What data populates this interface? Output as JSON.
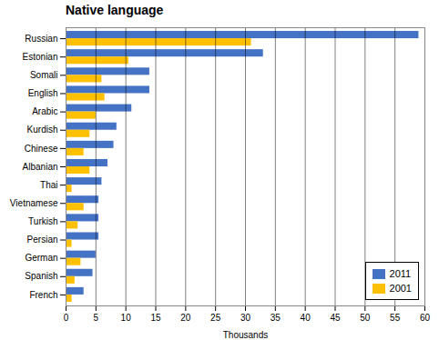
{
  "chart_data": {
    "type": "bar",
    "orientation": "horizontal",
    "title": "Native language",
    "xlabel": "Thousands",
    "categories": [
      "Russian",
      "Estonian",
      "Somali",
      "English",
      "Arabic",
      "Kurdish",
      "Chinese",
      "Albanian",
      "Thai",
      "Vietnamese",
      "Turkish",
      "Persian",
      "German",
      "Spanish",
      "French"
    ],
    "series": [
      {
        "name": "2011",
        "color": "#4472C4",
        "values": [
          59,
          33,
          14,
          14,
          11,
          8.5,
          8,
          7,
          6,
          5.5,
          5.5,
          5.5,
          5,
          4.5,
          3
        ]
      },
      {
        "name": "2001",
        "color": "#FFC000",
        "values": [
          31,
          10.5,
          6,
          6.5,
          5,
          4,
          3,
          4,
          1,
          3,
          2,
          1,
          2.5,
          1.5,
          1
        ]
      }
    ],
    "xlim": [
      0,
      60
    ],
    "xticks": [
      0,
      5,
      10,
      15,
      20,
      25,
      30,
      35,
      40,
      45,
      50,
      55,
      60
    ],
    "grid": true,
    "legend": "lower right"
  }
}
